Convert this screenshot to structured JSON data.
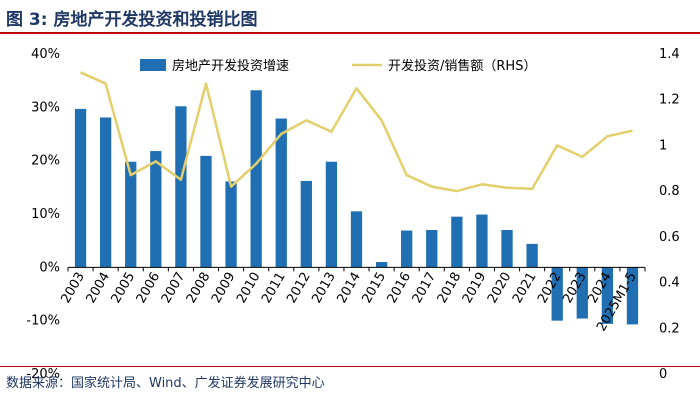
{
  "title": "图 3: 房地产开发投资和投销比图",
  "source": "数据来源：国家统计局、Wind、广发证券发展研究中心",
  "colors": {
    "bar": "#1f6fb2",
    "line": "#e3cf6b",
    "title": "#1f3864",
    "rule": "#c00000"
  },
  "chart_data": {
    "type": "bar",
    "categories": [
      "2003",
      "2004",
      "2005",
      "2006",
      "2007",
      "2008",
      "2009",
      "2010",
      "2011",
      "2012",
      "2013",
      "2014",
      "2015",
      "2016",
      "2017",
      "2018",
      "2019",
      "2020",
      "2021",
      "2022",
      "2023",
      "2024",
      "2025M1-5"
    ],
    "series": [
      {
        "name": "房地产开发投资增速",
        "type": "bar",
        "axis": "left",
        "values": [
          29.7,
          28.1,
          19.8,
          21.8,
          30.2,
          20.9,
          16.1,
          33.2,
          27.9,
          16.2,
          19.8,
          10.5,
          1.0,
          6.9,
          7.0,
          9.5,
          9.9,
          7.0,
          4.4,
          -10.0,
          -9.6,
          -10.6,
          -10.7
        ]
      },
      {
        "name": "开发投资/销售额（RHS）",
        "type": "line",
        "axis": "right",
        "values": [
          1.32,
          1.27,
          0.87,
          0.93,
          0.85,
          1.27,
          0.82,
          0.92,
          1.05,
          1.11,
          1.06,
          1.25,
          1.11,
          0.87,
          0.82,
          0.8,
          0.83,
          0.815,
          0.81,
          1.0,
          0.95,
          1.04,
          1.065
        ]
      }
    ],
    "y_left": {
      "min": -20,
      "max": 40,
      "ticks": [
        "-20%",
        "-10%",
        "0%",
        "10%",
        "20%",
        "30%",
        "40%"
      ]
    },
    "y_right": {
      "min": 0,
      "max": 1.4,
      "ticks": [
        "0",
        "0.2",
        "0.4",
        "0.6",
        "0.8",
        "1",
        "1.2",
        "1.4"
      ]
    },
    "legend_position": "top",
    "grid": false
  }
}
